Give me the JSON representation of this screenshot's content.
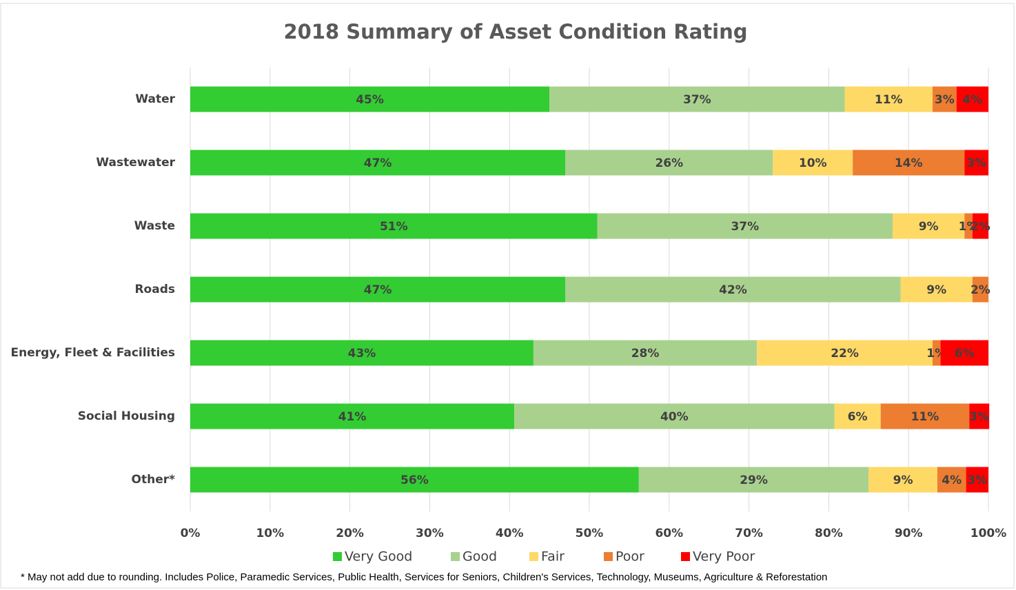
{
  "chart_data": {
    "type": "stacked_barh",
    "title": "2018 Summary of Asset Condition Rating",
    "categories": [
      "Water",
      "Wastewater",
      "Waste",
      "Roads",
      "Energy, Fleet & Facilities",
      "Social Housing",
      "Other*"
    ],
    "series": [
      {
        "name": "Very Good",
        "color": "#33cc33",
        "values": [
          45,
          47,
          51,
          47,
          43,
          40.6,
          56.2
        ],
        "value_labels": [
          "45%",
          "47%",
          "51%",
          "47%",
          "43%",
          "41%",
          "56%"
        ]
      },
      {
        "name": "Good",
        "color": "#a9d18e",
        "values": [
          37,
          26,
          37,
          42,
          28,
          40.1,
          28.8
        ],
        "value_labels": [
          "37%",
          "26%",
          "37%",
          "42%",
          "28%",
          "40%",
          "29%"
        ]
      },
      {
        "name": "Fair",
        "color": "#ffd966",
        "values": [
          11,
          10,
          9,
          9,
          22,
          5.8,
          8.6
        ],
        "value_labels": [
          "11%",
          "10%",
          "9%",
          "9%",
          "22%",
          "6%",
          "9%"
        ]
      },
      {
        "name": "Poor",
        "color": "#ed7d31",
        "values": [
          3,
          14,
          1,
          2,
          1,
          11.1,
          3.6
        ],
        "value_labels": [
          "3%",
          "14%",
          "1%",
          "2%",
          "1%",
          "11%",
          "4%"
        ]
      },
      {
        "name": "Very Poor",
        "color": "#ff0000",
        "values": [
          4,
          3,
          2,
          null,
          6,
          2.5,
          2.8
        ],
        "value_labels": [
          "4%",
          "3%",
          "2%",
          null,
          "6%",
          "3%",
          "3%"
        ]
      }
    ],
    "xlim": [
      0,
      100
    ],
    "xticks": [
      {
        "value": 0,
        "label": "0%"
      },
      {
        "value": 10,
        "label": "10%"
      },
      {
        "value": 20,
        "label": "20%"
      },
      {
        "value": 30,
        "label": "30%"
      },
      {
        "value": 40,
        "label": "40%"
      },
      {
        "value": 50,
        "label": "50%"
      },
      {
        "value": 60,
        "label": "60%"
      },
      {
        "value": 70,
        "label": "70%"
      },
      {
        "value": 80,
        "label": "80%"
      },
      {
        "value": 90,
        "label": "90%"
      },
      {
        "value": 100,
        "label": "100%"
      }
    ],
    "grid": true,
    "legend": "bottom",
    "footnote": "* May not add due to rounding. Includes Police, Paramedic Services, Public Health, Services for Seniors, Children's Services, Technology, Museums, Agriculture & Reforestation"
  }
}
